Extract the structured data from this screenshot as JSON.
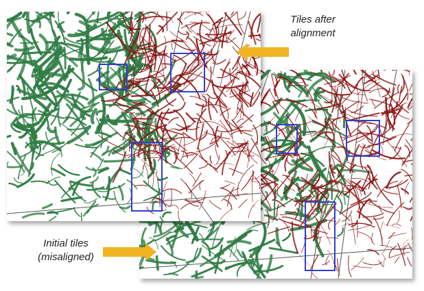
{
  "captions": {
    "after_line1": "Tiles after",
    "after_line2": "alignment",
    "initial_line1": "Initial tiles",
    "initial_line2": "(misaligned)"
  },
  "colors": {
    "green_vessels": "#2f7d45",
    "red_vessels": "#8b1414",
    "highlight_box": "#2f3fd0",
    "arrow": "#f0b323",
    "grid_lines": "#555555",
    "panel_background": "#ffffff"
  },
  "panels": [
    {
      "name": "tiles-after-alignment",
      "highlight_boxes": 3
    },
    {
      "name": "initial-tiles-misaligned",
      "highlight_boxes": 3
    }
  ]
}
